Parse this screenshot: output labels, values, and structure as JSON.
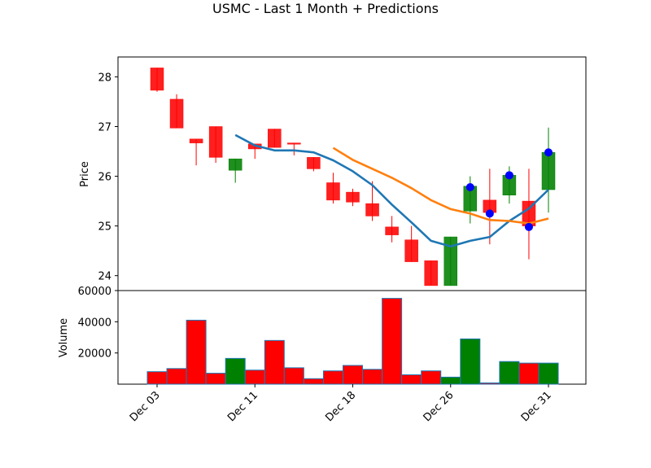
{
  "chart_data": {
    "type": "candlestick",
    "title": "USMC - Last 1 Month + Predictions",
    "price_panel": {
      "ylabel": "Price",
      "ylim": [
        23.7,
        28.4
      ],
      "yticks": [
        24,
        25,
        26,
        27,
        28
      ],
      "candles": [
        {
          "date": "Dec 03",
          "open": 28.18,
          "high": 28.18,
          "low": 27.7,
          "close": 27.73
        },
        {
          "date": "Dec 04",
          "open": 27.55,
          "high": 27.65,
          "low": 26.97,
          "close": 26.97
        },
        {
          "date": "Dec 05",
          "open": 26.75,
          "high": 26.75,
          "low": 26.22,
          "close": 26.67
        },
        {
          "date": "Dec 06",
          "open": 27.0,
          "high": 27.0,
          "low": 26.27,
          "close": 26.38
        },
        {
          "date": "Dec 10",
          "open": 26.12,
          "high": 26.35,
          "low": 25.87,
          "close": 26.35
        },
        {
          "date": "Dec 11",
          "open": 26.65,
          "high": 26.65,
          "low": 26.35,
          "close": 26.55
        },
        {
          "date": "Dec 12",
          "open": 26.95,
          "high": 26.95,
          "low": 26.58,
          "close": 26.58
        },
        {
          "date": "Dec 13",
          "open": 26.67,
          "high": 26.67,
          "low": 26.42,
          "close": 26.65
        },
        {
          "date": "Dec 16",
          "open": 26.38,
          "high": 26.38,
          "low": 26.1,
          "close": 26.15
        },
        {
          "date": "Dec 17",
          "open": 25.87,
          "high": 26.07,
          "low": 25.45,
          "close": 25.52
        },
        {
          "date": "Dec 18",
          "open": 25.68,
          "high": 25.75,
          "low": 25.4,
          "close": 25.48
        },
        {
          "date": "Dec 19",
          "open": 25.45,
          "high": 25.9,
          "low": 25.1,
          "close": 25.2
        },
        {
          "date": "Dec 20",
          "open": 24.98,
          "high": 25.2,
          "low": 24.67,
          "close": 24.82
        },
        {
          "date": "Dec 23",
          "open": 24.72,
          "high": 25.0,
          "low": 24.28,
          "close": 24.28
        },
        {
          "date": "Dec 24",
          "open": 24.3,
          "high": 24.3,
          "low": 23.8,
          "close": 23.8
        },
        {
          "date": "Dec 26",
          "open": 23.8,
          "high": 24.78,
          "low": 23.8,
          "close": 24.78
        },
        {
          "date": "Dec 27",
          "open": 25.3,
          "high": 26.0,
          "low": 25.05,
          "close": 25.8
        },
        {
          "date": "Dec 28",
          "open": 25.52,
          "high": 26.15,
          "low": 24.63,
          "close": 25.27
        },
        {
          "date": "Dec 29",
          "open": 25.62,
          "high": 26.2,
          "low": 25.45,
          "close": 26.02
        },
        {
          "date": "Dec 30",
          "open": 25.5,
          "high": 26.15,
          "low": 24.33,
          "close": 25.0
        },
        {
          "date": "Dec 31",
          "open": 25.73,
          "high": 26.98,
          "low": 25.27,
          "close": 26.48
        }
      ],
      "line_blue": [
        null,
        null,
        null,
        null,
        26.83,
        26.62,
        26.52,
        26.52,
        26.48,
        26.32,
        26.1,
        25.82,
        25.43,
        25.07,
        24.7,
        24.59,
        24.7,
        24.78,
        25.1,
        25.35,
        25.73
      ],
      "line_orange": [
        null,
        null,
        null,
        null,
        null,
        null,
        null,
        null,
        null,
        26.57,
        26.33,
        26.15,
        25.97,
        25.76,
        25.52,
        25.34,
        25.25,
        25.12,
        25.1,
        25.05,
        25.15
      ],
      "prediction_points": [
        {
          "index": 16,
          "value": 25.78
        },
        {
          "index": 17,
          "value": 25.25
        },
        {
          "index": 18,
          "value": 26.02
        },
        {
          "index": 19,
          "value": 24.98
        },
        {
          "index": 20,
          "value": 26.48
        }
      ],
      "colors": {
        "up": "#008000",
        "down": "#ff0000",
        "blue_line": "#1f77b4",
        "orange_line": "#ff7f0e",
        "prediction": "#0000ff"
      }
    },
    "volume_panel": {
      "ylabel": "Volume",
      "ylim": [
        0,
        60000
      ],
      "yticks": [
        20000,
        40000,
        60000
      ],
      "ytick_labels": [
        "20000",
        "40000",
        "60000"
      ],
      "values": [
        8000,
        10000,
        41000,
        7000,
        16500,
        9000,
        28000,
        10500,
        3500,
        8500,
        12000,
        9500,
        55000,
        6000,
        8500,
        4500,
        29000,
        800,
        14500,
        13500,
        13500
      ]
    },
    "xticks": [
      {
        "label": "Dec 03",
        "index": 0
      },
      {
        "label": "Dec 11",
        "index": 5
      },
      {
        "label": "Dec 18",
        "index": 10
      },
      {
        "label": "Dec 26",
        "index": 15
      },
      {
        "label": "Dec 31",
        "index": 20
      }
    ]
  }
}
